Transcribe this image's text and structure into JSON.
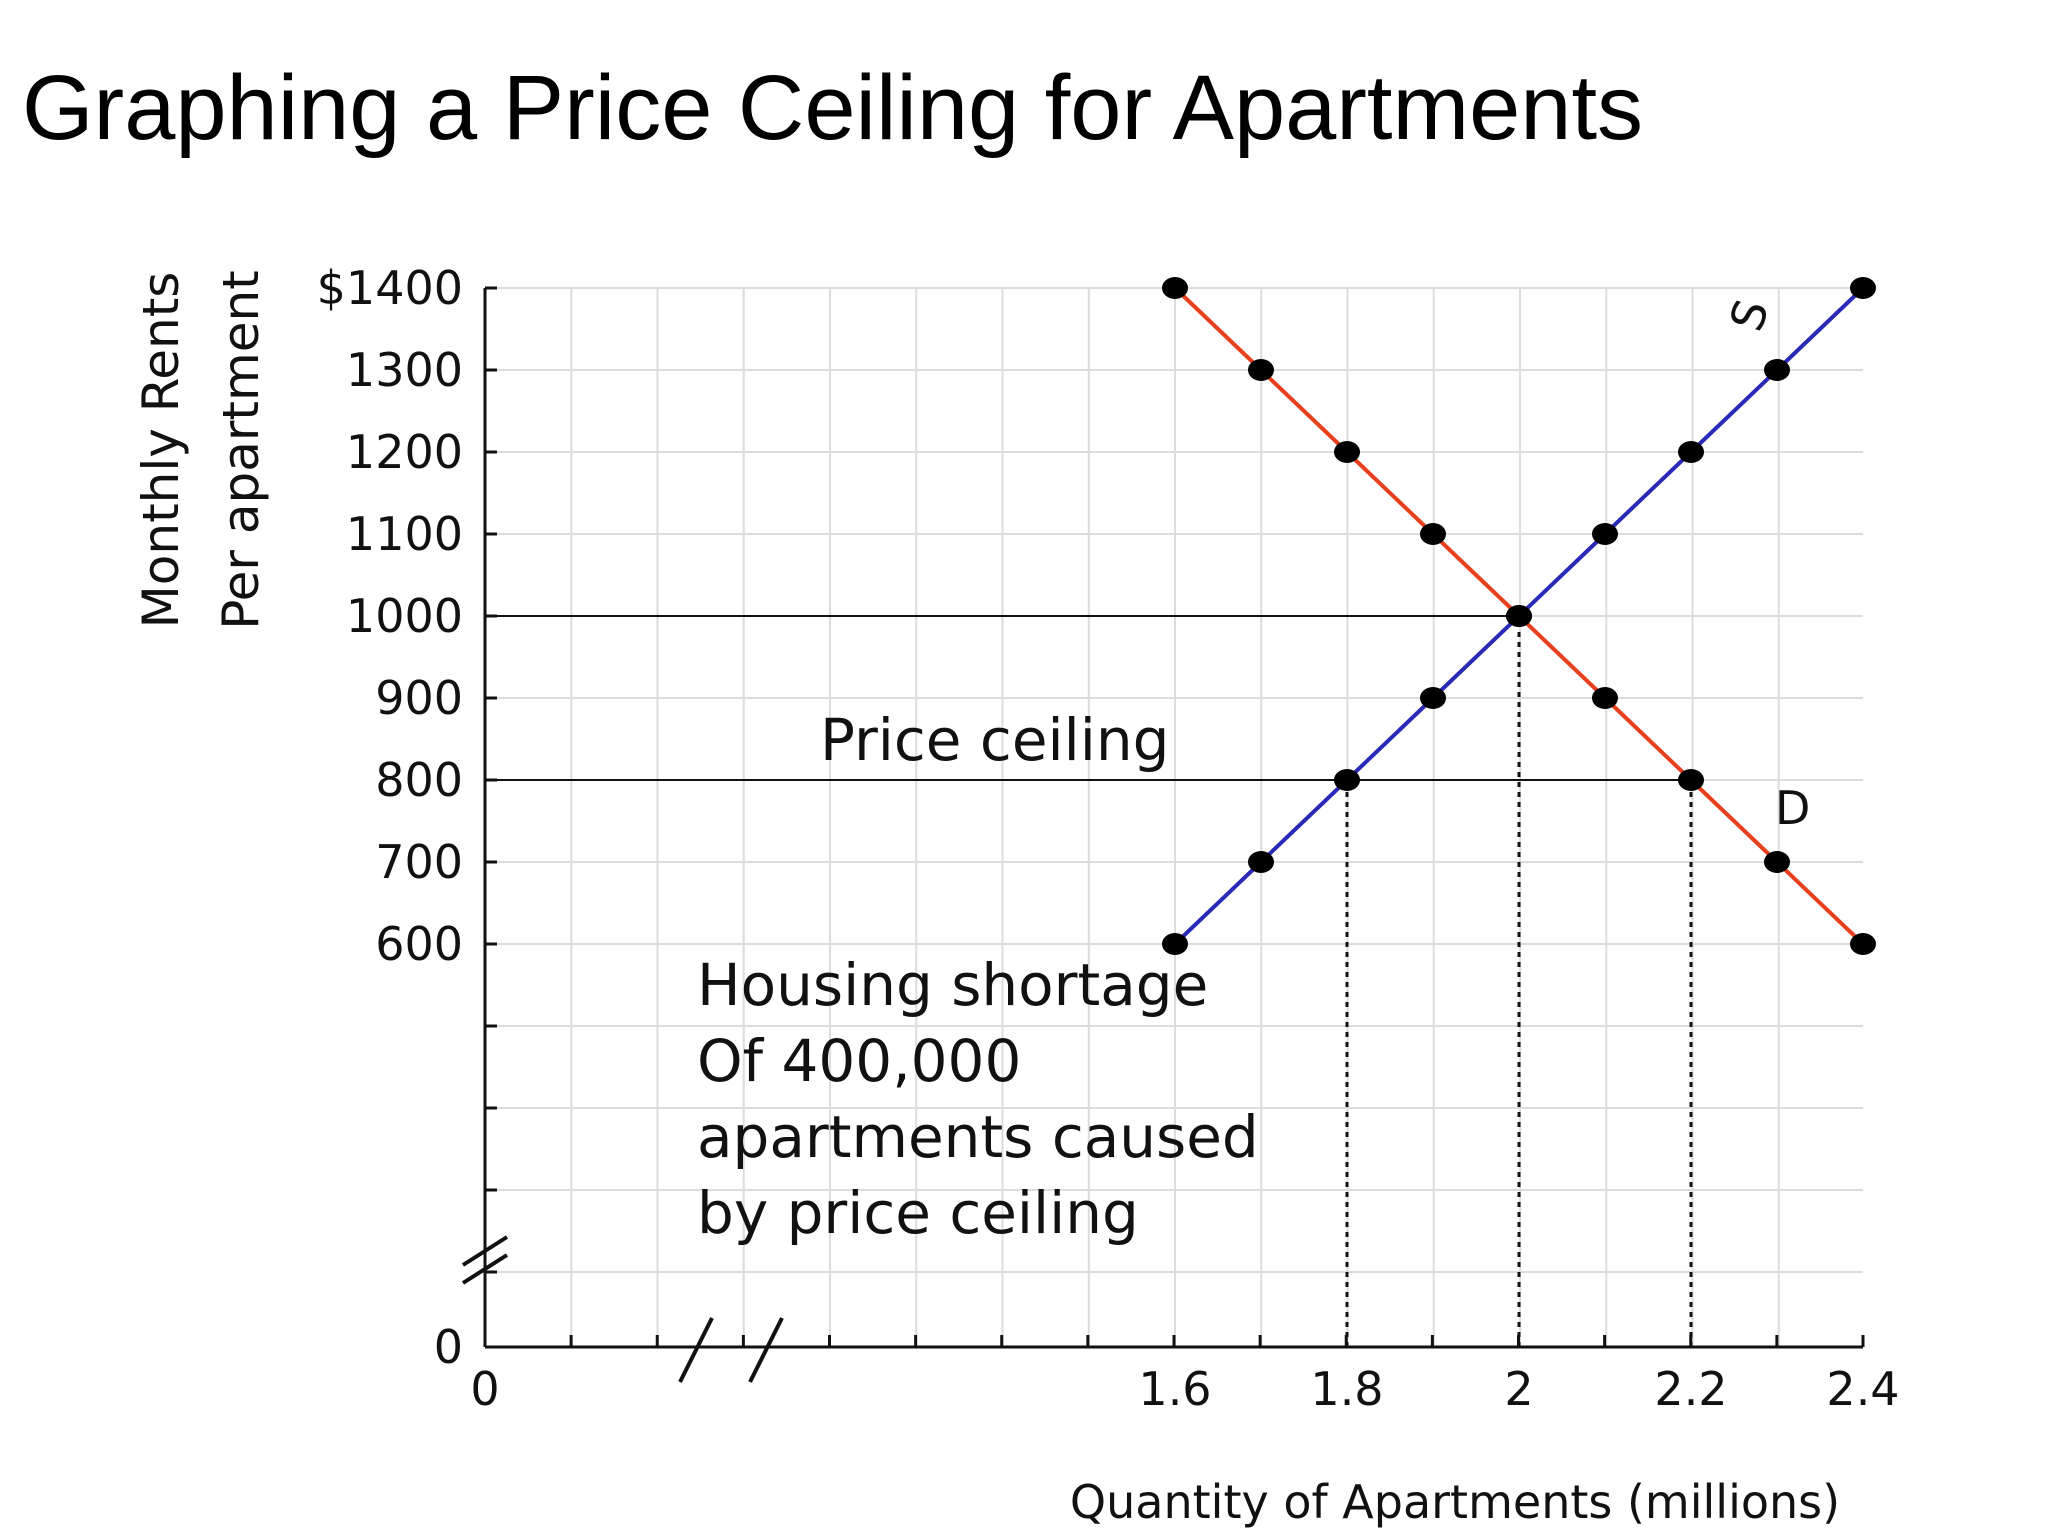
{
  "title": "Graphing a Price Ceiling for Apartments",
  "chart_data": {
    "type": "line",
    "title": "",
    "ylabel_lines": [
      "Monthly Rents",
      "Per apartment"
    ],
    "xlabel": "Quantity of Apartments (millions)",
    "xlim": [
      0,
      2.4
    ],
    "ylim": [
      0,
      1400
    ],
    "axis_breaks": {
      "x": true,
      "y": true
    },
    "grid": true,
    "y_ticks": [
      {
        "value": 1400,
        "label": "$1400"
      },
      {
        "value": 1300,
        "label": "1300"
      },
      {
        "value": 1200,
        "label": "1200"
      },
      {
        "value": 1100,
        "label": "1100"
      },
      {
        "value": 1000,
        "label": "1000"
      },
      {
        "value": 900,
        "label": "900"
      },
      {
        "value": 800,
        "label": "800"
      },
      {
        "value": 700,
        "label": "700"
      },
      {
        "value": 600,
        "label": "600"
      }
    ],
    "y_origin_label": "0",
    "x_ticks": [
      {
        "value": 0,
        "label": "0"
      },
      {
        "value": 1.6,
        "label": "1.6"
      },
      {
        "value": 1.8,
        "label": "1.8"
      },
      {
        "value": 2.0,
        "label": "2"
      },
      {
        "value": 2.2,
        "label": "2.2"
      },
      {
        "value": 2.4,
        "label": "2.4"
      }
    ],
    "series": [
      {
        "name": "D",
        "color": "#e8401c",
        "points": [
          [
            1.6,
            1400
          ],
          [
            1.7,
            1300
          ],
          [
            1.8,
            1200
          ],
          [
            1.9,
            1100
          ],
          [
            2.0,
            1000
          ],
          [
            2.1,
            900
          ],
          [
            2.2,
            800
          ],
          [
            2.3,
            700
          ],
          [
            2.4,
            600
          ]
        ]
      },
      {
        "name": "S",
        "color": "#2a2ab8",
        "points": [
          [
            1.6,
            600
          ],
          [
            1.7,
            700
          ],
          [
            1.8,
            800
          ],
          [
            1.9,
            900
          ],
          [
            2.0,
            1000
          ],
          [
            2.1,
            1100
          ],
          [
            2.2,
            1200
          ],
          [
            2.3,
            1300
          ],
          [
            2.4,
            1400
          ]
        ]
      }
    ],
    "reference_lines": [
      {
        "kind": "horizontal",
        "y": 1000,
        "from_x": 0,
        "to_x": 2.0,
        "style": "solid"
      },
      {
        "kind": "horizontal",
        "y": 800,
        "from_x": 0,
        "to_x": 2.2,
        "style": "solid",
        "label": "Price ceiling"
      },
      {
        "kind": "vertical",
        "x": 1.8,
        "from_y": 0,
        "to_y": 800,
        "style": "dotted"
      },
      {
        "kind": "vertical",
        "x": 2.0,
        "from_y": 0,
        "to_y": 1000,
        "style": "dotted"
      },
      {
        "kind": "vertical",
        "x": 2.2,
        "from_y": 0,
        "to_y": 800,
        "style": "dotted"
      }
    ],
    "annotation_lines": [
      "Housing shortage",
      "Of 400,000",
      "apartments caused",
      "by price ceiling"
    ]
  }
}
